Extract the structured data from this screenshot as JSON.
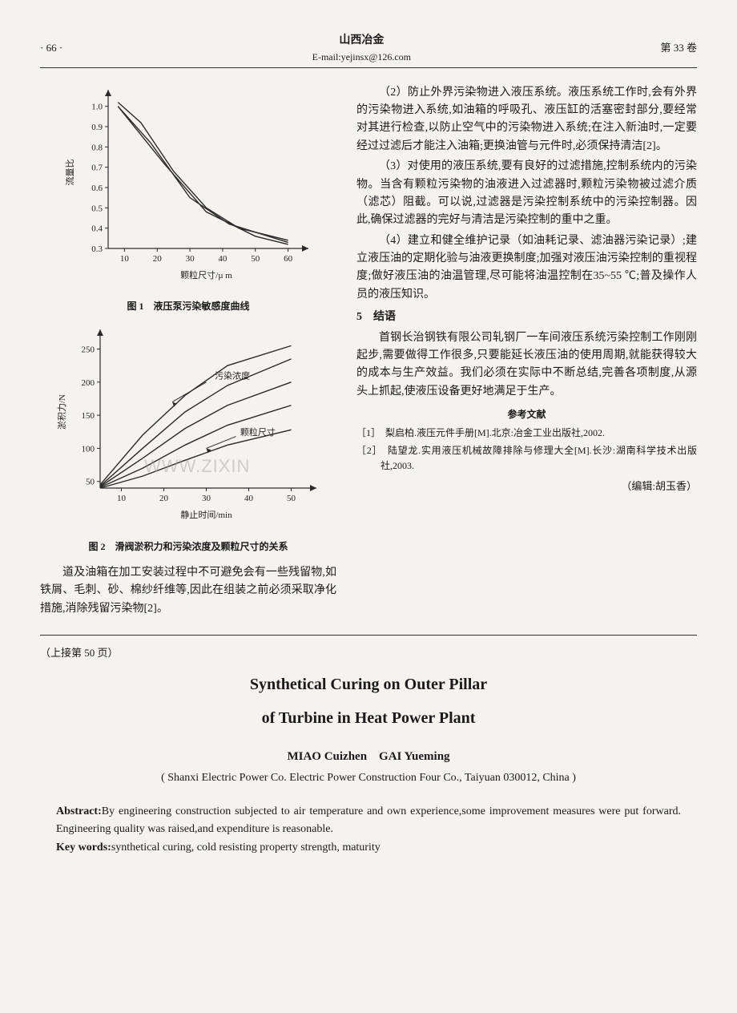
{
  "header": {
    "page_number": "· 66 ·",
    "journal_title": "山西冶金",
    "email": "E-mail:yejinsx@126.com",
    "issue": "第 33 卷"
  },
  "chart1": {
    "type": "line",
    "x_label": "颗粒尺寸/µ m",
    "y_label": "流量比",
    "y_ticks": [
      "0.3",
      "0.4",
      "0.5",
      "0.6",
      "0.7",
      "0.8",
      "0.9",
      "1.0"
    ],
    "x_ticks": [
      "10",
      "20",
      "30",
      "40",
      "50",
      "60"
    ],
    "ylim": [
      0.3,
      1.05
    ],
    "xlim": [
      5,
      65
    ],
    "line_color": "#2a2a2a",
    "axis_color": "#2a2a2a",
    "background_color": "transparent",
    "series": [
      {
        "points": [
          [
            8,
            1.02
          ],
          [
            15,
            0.92
          ],
          [
            25,
            0.68
          ],
          [
            35,
            0.5
          ],
          [
            45,
            0.4
          ],
          [
            60,
            0.34
          ]
        ]
      },
      {
        "points": [
          [
            8,
            1.0
          ],
          [
            18,
            0.82
          ],
          [
            30,
            0.55
          ],
          [
            42,
            0.42
          ],
          [
            60,
            0.33
          ]
        ]
      },
      {
        "points": [
          [
            8,
            1.0
          ],
          [
            22,
            0.72
          ],
          [
            35,
            0.48
          ],
          [
            50,
            0.36
          ],
          [
            60,
            0.32
          ]
        ]
      }
    ],
    "caption": "图 1　液压泵污染敏感度曲线"
  },
  "chart2": {
    "type": "line",
    "x_label": "静止时间/min",
    "y_label": "淤积力/N",
    "y_ticks": [
      "50",
      "100",
      "150",
      "200",
      "250"
    ],
    "x_ticks": [
      "10",
      "20",
      "30",
      "40",
      "50"
    ],
    "ylim": [
      40,
      270
    ],
    "xlim": [
      5,
      55
    ],
    "line_color": "#2a2a2a",
    "axis_color": "#2a2a2a",
    "background_color": "transparent",
    "annot1": "污染浓度",
    "annot2": "颗粒尺寸",
    "series": [
      {
        "points": [
          [
            5,
            45
          ],
          [
            15,
            120
          ],
          [
            25,
            180
          ],
          [
            35,
            225
          ],
          [
            50,
            255
          ]
        ]
      },
      {
        "points": [
          [
            5,
            43
          ],
          [
            15,
            100
          ],
          [
            25,
            155
          ],
          [
            35,
            195
          ],
          [
            50,
            235
          ]
        ]
      },
      {
        "points": [
          [
            5,
            42
          ],
          [
            15,
            85
          ],
          [
            25,
            130
          ],
          [
            35,
            165
          ],
          [
            50,
            200
          ]
        ]
      },
      {
        "points": [
          [
            5,
            41
          ],
          [
            15,
            70
          ],
          [
            25,
            105
          ],
          [
            35,
            135
          ],
          [
            50,
            165
          ]
        ]
      },
      {
        "points": [
          [
            5,
            40
          ],
          [
            15,
            58
          ],
          [
            25,
            82
          ],
          [
            35,
            105
          ],
          [
            50,
            128
          ]
        ]
      }
    ],
    "caption": "图 2　滑阀淤积力和污染浓度及颗粒尺寸的关系"
  },
  "left_text": "道及油箱在加工安装过程中不可避免会有一些残留物,如铁屑、毛刺、砂、棉纱纤维等,因此在组装之前必须采取净化措施,消除残留污染物[2]。",
  "right_paragraphs": {
    "p2": "（2）防止外界污染物进入液压系统。液压系统工作时,会有外界的污染物进入系统,如油箱的呼吸孔、液压缸的活塞密封部分,要经常对其进行检查,以防止空气中的污染物进入系统;在注入新油时,一定要经过过滤后才能注入油箱;更换油管与元件时,必须保持清洁[2]。",
    "p3": "（3）对使用的液压系统,要有良好的过滤措施,控制系统内的污染物。当含有颗粒污染物的油液进入过滤器时,颗粒污染物被过滤介质（滤芯）阻截。可以说,过滤器是污染控制系统中的污染控制器。因此,确保过滤器的完好与清洁是污染控制的重中之重。",
    "p4": "（4）建立和健全维护记录（如油耗记录、滤油器污染记录）;建立液压油的定期化验与油液更换制度;加强对液压油污染控制的重视程度;做好液压油的油温管理,尽可能将油温控制在35~55 ℃;普及操作人员的液压知识。",
    "sec5": "5　结语",
    "conclusion": "首钢长治钢铁有限公司轧钢厂一车间液压系统污染控制工作刚刚起步,需要做得工作很多,只要能延长液压油的使用周期,就能获得较大的成本与生产效益。我们必须在实际中不断总结,完善各项制度,从源头上抓起,使液压设备更好地满足于生产。"
  },
  "references": {
    "title": "参考文献",
    "items": [
      "［1］　梨启柏.液压元件手册[M].北京:冶金工业出版社,2002.",
      "［2］　陆望龙.实用液压机械故障排除与修理大全[M].长沙:湖南科学技术出版社,2003."
    ]
  },
  "editor": "（编辑:胡玉香）",
  "continued_from": "（上接第 50 页）",
  "english": {
    "title1": "Synthetical Curing on Outer Pillar",
    "title2": "of Turbine in Heat Power Plant",
    "authors": "MIAO Cuizhen　GAI Yueming",
    "affiliation": "( Shanxi Electric Power Co. Electric Power Construction Four Co., Taiyuan 030012, China )",
    "abstract_label": "Abstract:",
    "abstract_text": "By engineering construction subjected to air temperature and own experience,some improvement measures were put forward.　Engineering quality was raised,and expenditure is reasonable.",
    "keywords_label": "Key words:",
    "keywords_text": "synthetical curing, cold resisting property strength, maturity"
  },
  "watermark": "WWW.ZIXIN"
}
